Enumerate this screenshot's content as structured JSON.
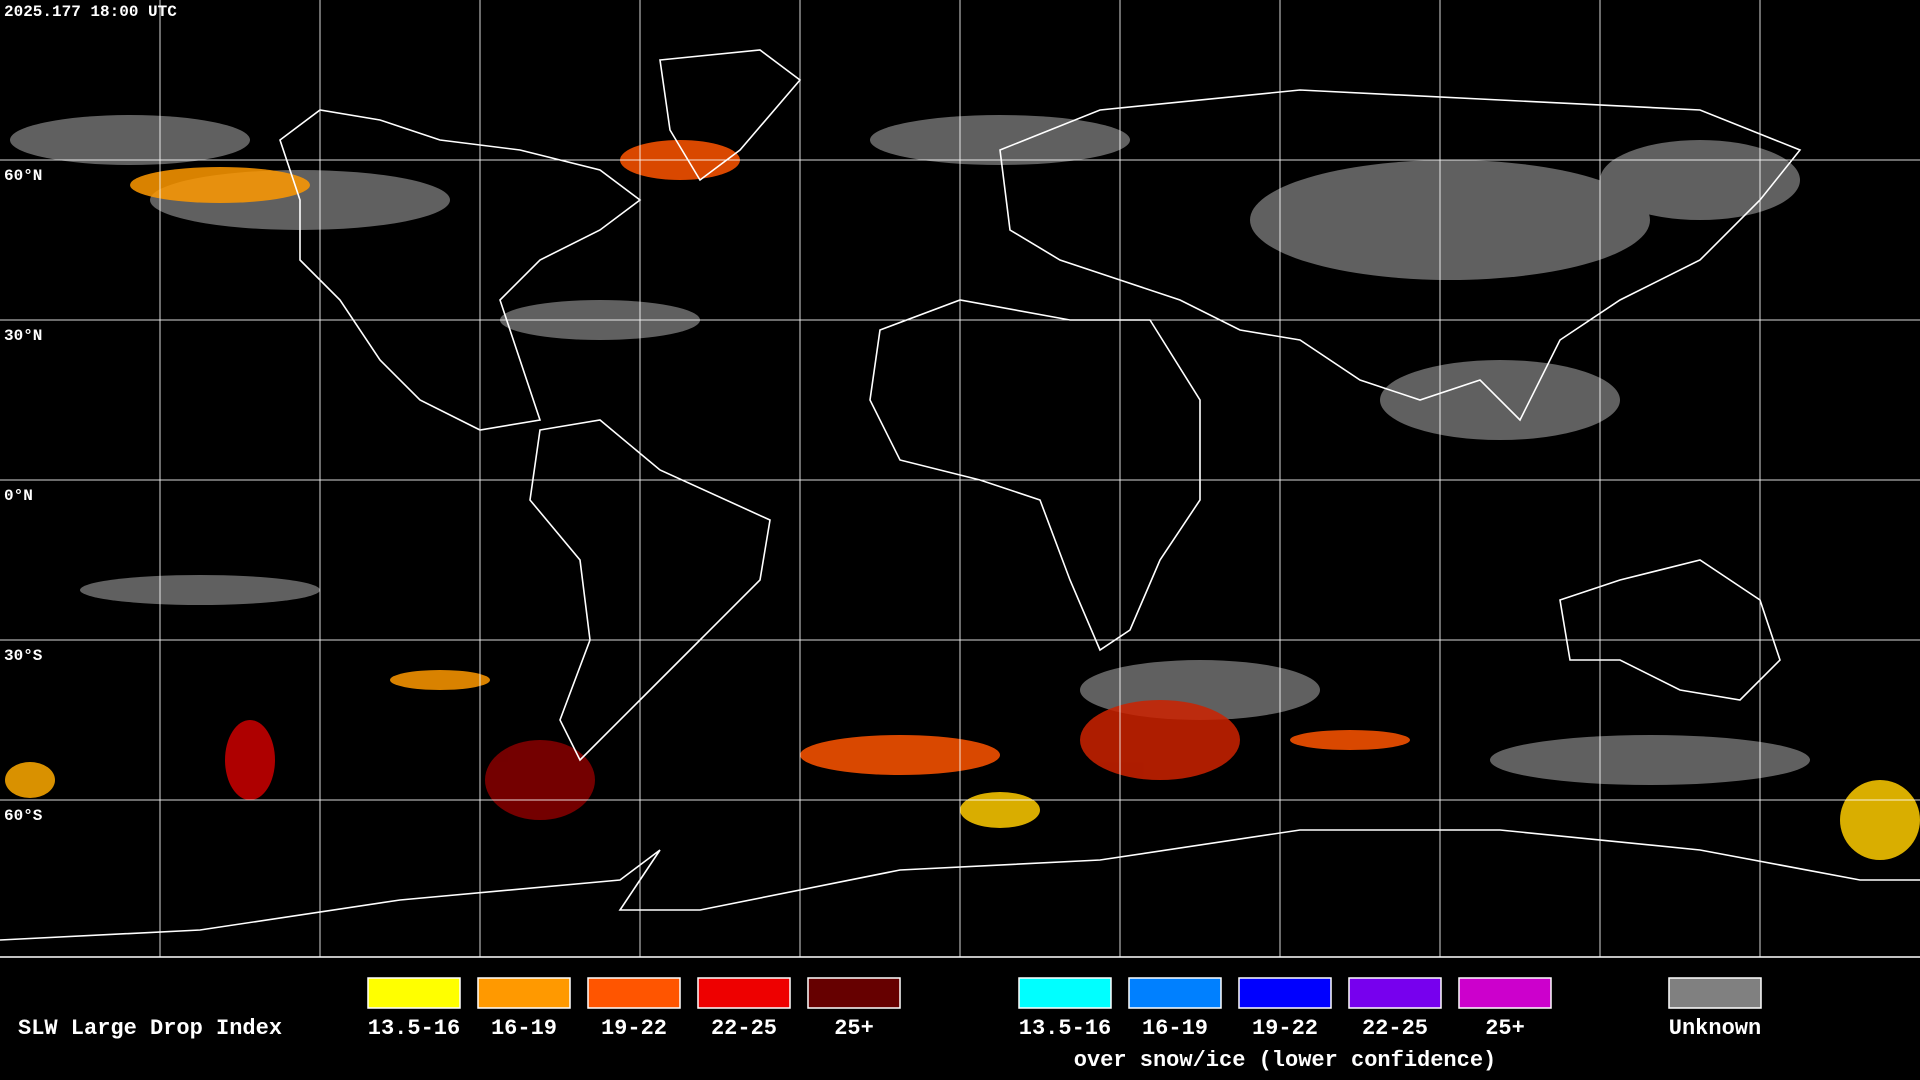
{
  "timestamp": "2025.177 18:00 UTC",
  "lat_labels": [
    "60°N",
    "30°N",
    "0°N",
    "30°S",
    "60°S"
  ],
  "legend": {
    "title": "SLW Large Drop Index",
    "groups": [
      {
        "items": [
          {
            "label": "13.5-16",
            "color": "#ffff00"
          },
          {
            "label": "16-19",
            "color": "#ff9900"
          },
          {
            "label": "19-22",
            "color": "#ff5500"
          },
          {
            "label": "22-25",
            "color": "#ee0000"
          },
          {
            "label": "25+",
            "color": "#660000"
          }
        ]
      },
      {
        "items": [
          {
            "label": "13.5-16",
            "color": "#00ffff"
          },
          {
            "label": "16-19",
            "color": "#0080ff"
          },
          {
            "label": "19-22",
            "color": "#0000ff"
          },
          {
            "label": "22-25",
            "color": "#7700ee"
          },
          {
            "label": "25+",
            "color": "#cc00cc"
          }
        ],
        "caption": "over snow/ice (lower confidence)"
      },
      {
        "items": [
          {
            "label": "Unknown",
            "color": "#808080"
          }
        ]
      }
    ]
  }
}
